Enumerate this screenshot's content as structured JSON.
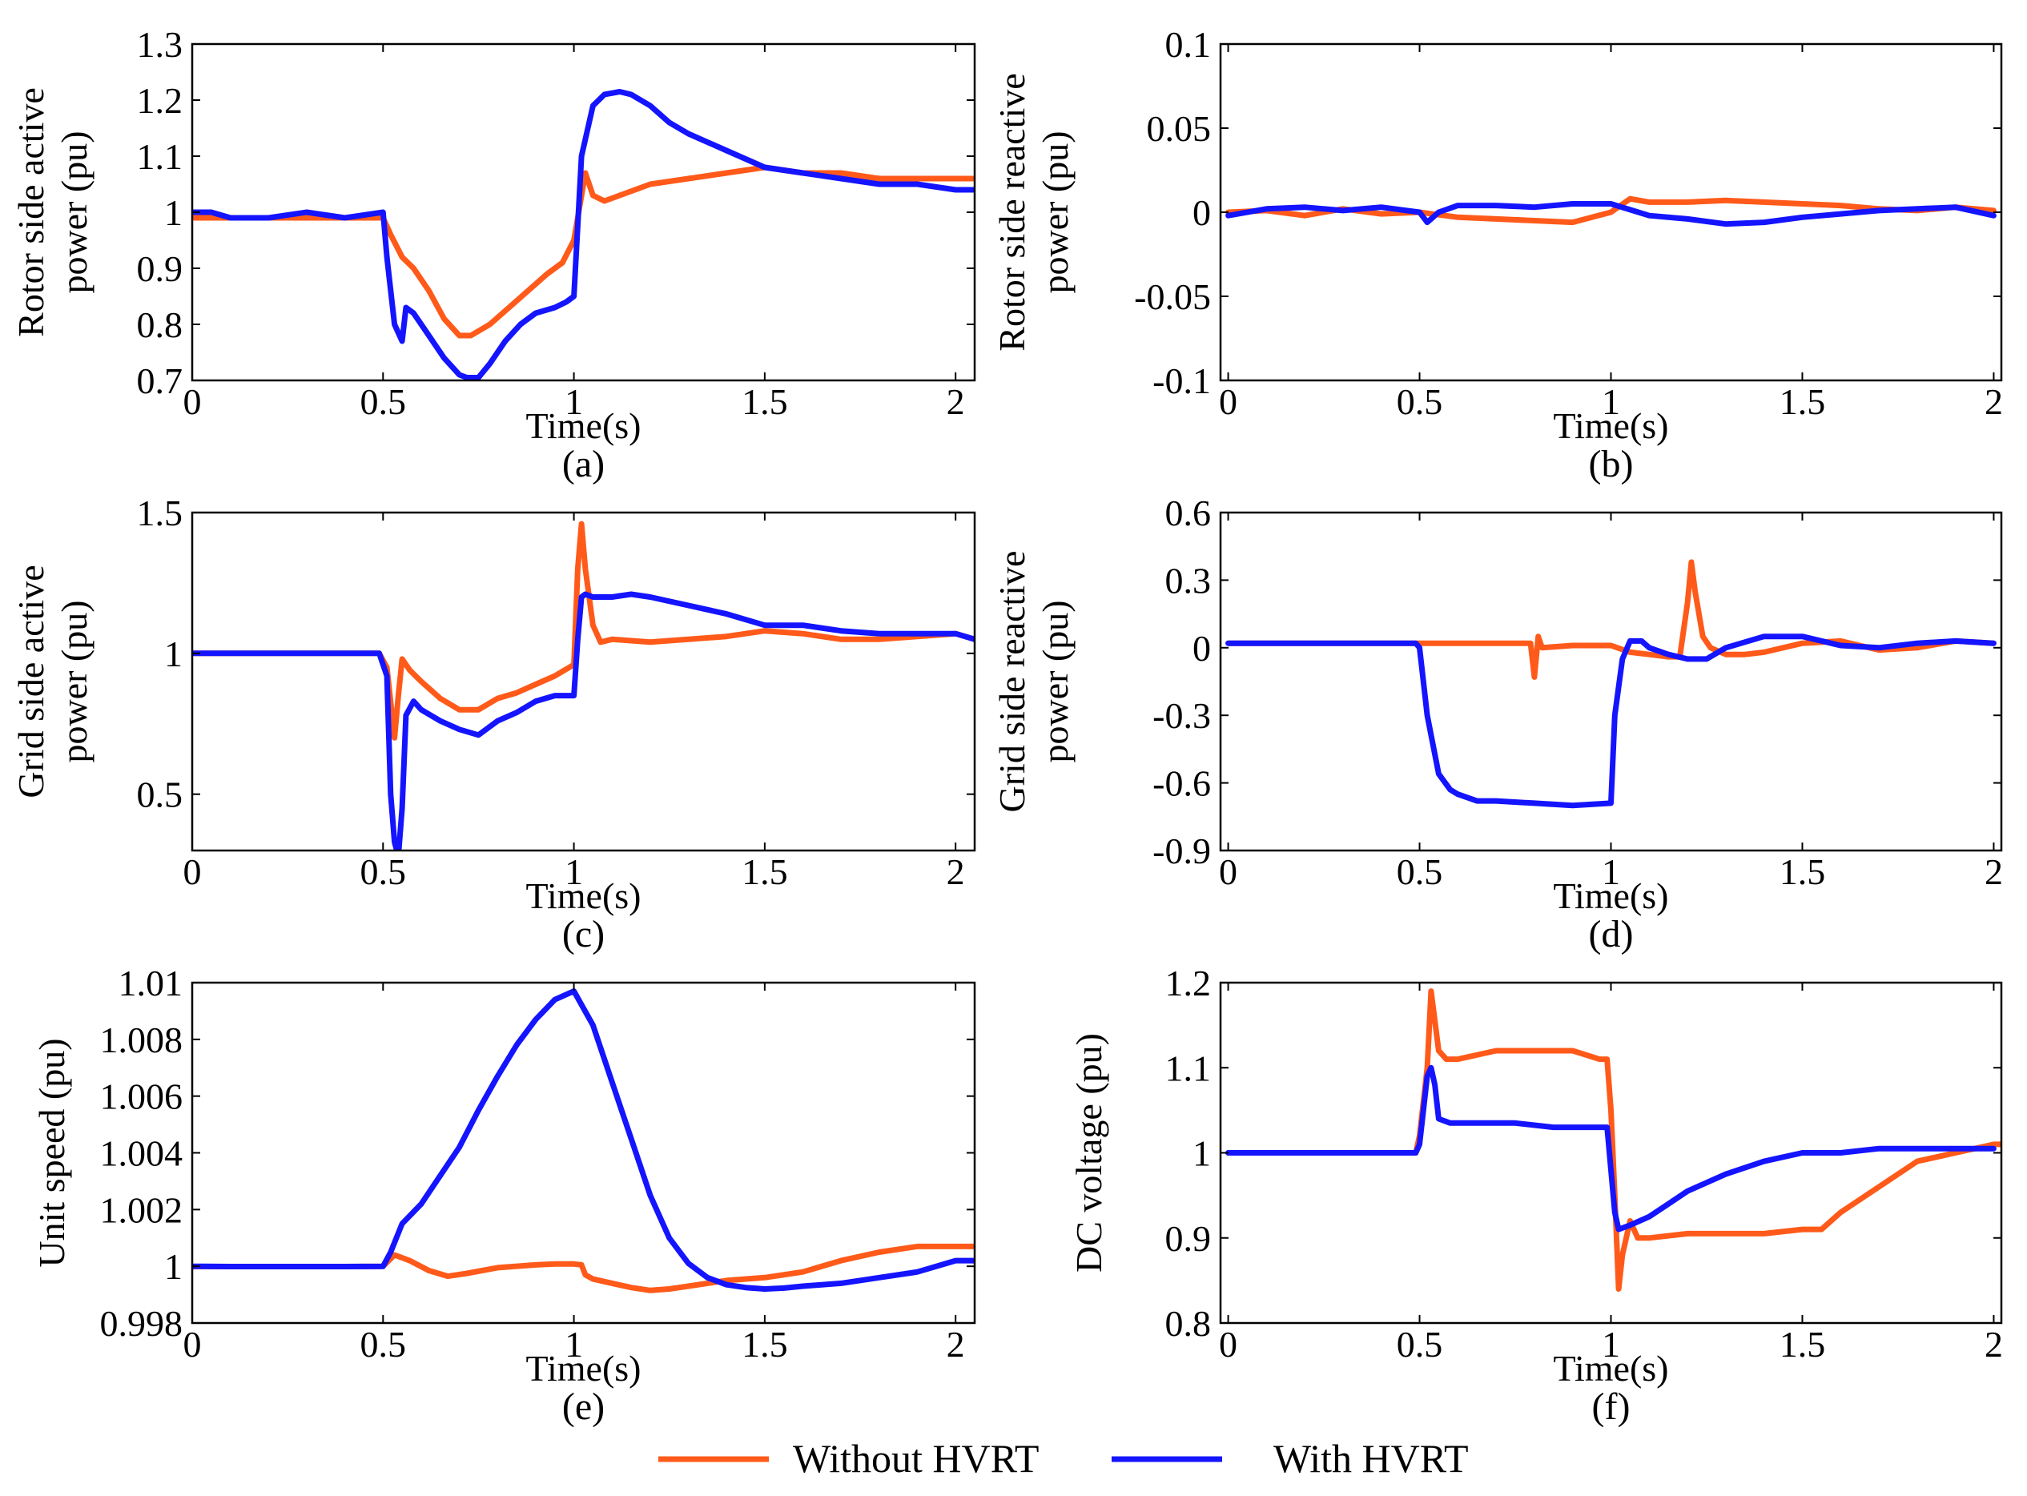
{
  "legend": {
    "series": [
      {
        "name": "Without HVRT",
        "color": "#ff5a1a"
      },
      {
        "name": "With HVRT",
        "color": "#1414ff"
      }
    ]
  },
  "chart_data": [
    {
      "id": "a",
      "caption": "(a)",
      "type": "line",
      "ylabel": [
        "Rotor side active",
        "power (pu)"
      ],
      "xlabel": "Time(s)",
      "xlim": [
        0,
        2.05
      ],
      "ylim": [
        0.7,
        1.3
      ],
      "xticks": [
        0,
        0.5,
        1,
        1.5,
        2
      ],
      "xtick_labels": [
        "0",
        "0.5",
        "1",
        "1.5",
        "2"
      ],
      "yticks": [
        0.7,
        0.8,
        0.9,
        1,
        1.1,
        1.2,
        1.3
      ],
      "ytick_labels": [
        "0.7",
        "0.8",
        "0.9",
        "1",
        "1.1",
        "1.2",
        "1.3"
      ],
      "series": [
        {
          "name": "Without HVRT",
          "color": "#ff5a1a",
          "x": [
            0,
            0.1,
            0.2,
            0.3,
            0.4,
            0.5,
            0.52,
            0.55,
            0.58,
            0.62,
            0.66,
            0.7,
            0.73,
            0.78,
            0.83,
            0.88,
            0.93,
            0.97,
            1.0,
            1.03,
            1.05,
            1.08,
            1.12,
            1.2,
            1.3,
            1.4,
            1.5,
            1.6,
            1.7,
            1.8,
            1.9,
            2.0,
            2.05
          ],
          "values": [
            0.99,
            0.99,
            0.99,
            0.99,
            0.99,
            0.99,
            0.96,
            0.92,
            0.9,
            0.86,
            0.81,
            0.78,
            0.78,
            0.8,
            0.83,
            0.86,
            0.89,
            0.91,
            0.95,
            1.07,
            1.03,
            1.02,
            1.03,
            1.05,
            1.06,
            1.07,
            1.08,
            1.07,
            1.07,
            1.06,
            1.06,
            1.06,
            1.06
          ]
        },
        {
          "name": "With HVRT",
          "color": "#1414ff",
          "x": [
            0,
            0.05,
            0.1,
            0.2,
            0.3,
            0.4,
            0.5,
            0.51,
            0.53,
            0.55,
            0.56,
            0.58,
            0.62,
            0.66,
            0.7,
            0.72,
            0.75,
            0.78,
            0.82,
            0.86,
            0.9,
            0.95,
            0.98,
            1.0,
            1.02,
            1.05,
            1.08,
            1.12,
            1.15,
            1.2,
            1.25,
            1.3,
            1.4,
            1.5,
            1.6,
            1.7,
            1.8,
            1.9,
            2.0,
            2.05
          ],
          "values": [
            1.0,
            1.0,
            0.99,
            0.99,
            1.0,
            0.99,
            1.0,
            0.92,
            0.8,
            0.77,
            0.83,
            0.82,
            0.78,
            0.74,
            0.71,
            0.705,
            0.705,
            0.73,
            0.77,
            0.8,
            0.82,
            0.83,
            0.84,
            0.85,
            1.1,
            1.19,
            1.21,
            1.215,
            1.21,
            1.19,
            1.16,
            1.14,
            1.11,
            1.08,
            1.07,
            1.06,
            1.05,
            1.05,
            1.04,
            1.04
          ]
        }
      ]
    },
    {
      "id": "b",
      "caption": "(b)",
      "type": "line",
      "ylabel": [
        "Rotor side reactive",
        "power (pu)"
      ],
      "xlabel": "Time(s)",
      "xlim": [
        -0.02,
        2.02
      ],
      "ylim": [
        -0.1,
        0.1
      ],
      "xticks": [
        0,
        0.5,
        1,
        1.5,
        2
      ],
      "xtick_labels": [
        "0",
        "0.5",
        "1",
        "1.5",
        "2"
      ],
      "yticks": [
        -0.1,
        -0.05,
        0,
        0.05,
        0.1
      ],
      "ytick_labels": [
        "-0.1",
        "-0.05",
        "0",
        "0.05",
        "0.1"
      ],
      "series": [
        {
          "name": "Without HVRT",
          "color": "#ff5a1a",
          "x": [
            0,
            0.1,
            0.2,
            0.3,
            0.4,
            0.5,
            0.6,
            0.7,
            0.8,
            0.9,
            1.0,
            1.05,
            1.1,
            1.2,
            1.3,
            1.4,
            1.5,
            1.6,
            1.7,
            1.8,
            1.9,
            2.0
          ],
          "values": [
            0.0,
            0.001,
            -0.002,
            0.002,
            -0.001,
            0.0,
            -0.003,
            -0.004,
            -0.005,
            -0.006,
            0.0,
            0.008,
            0.006,
            0.006,
            0.007,
            0.006,
            0.005,
            0.004,
            0.002,
            0.001,
            0.003,
            0.001
          ]
        },
        {
          "name": "With HVRT",
          "color": "#1414ff",
          "x": [
            0,
            0.1,
            0.2,
            0.3,
            0.4,
            0.5,
            0.52,
            0.55,
            0.6,
            0.7,
            0.8,
            0.9,
            1.0,
            1.1,
            1.2,
            1.3,
            1.4,
            1.5,
            1.6,
            1.7,
            1.8,
            1.9,
            2.0
          ],
          "values": [
            -0.002,
            0.002,
            0.003,
            0.001,
            0.003,
            0.0,
            -0.006,
            0.0,
            0.004,
            0.004,
            0.003,
            0.005,
            0.005,
            -0.002,
            -0.004,
            -0.007,
            -0.006,
            -0.003,
            -0.001,
            0.001,
            0.002,
            0.003,
            -0.002
          ]
        }
      ]
    },
    {
      "id": "c",
      "caption": "(c)",
      "type": "line",
      "ylabel": [
        "Grid side active",
        "power (pu)"
      ],
      "xlabel": "Time(s)",
      "xlim": [
        0,
        2.05
      ],
      "ylim": [
        0.3,
        1.5
      ],
      "xticks": [
        0,
        0.5,
        1,
        1.5,
        2
      ],
      "xtick_labels": [
        "0",
        "0.5",
        "1",
        "1.5",
        "2"
      ],
      "yticks": [
        0.5,
        1,
        1.5
      ],
      "ytick_labels": [
        "0.5",
        "1",
        "1.5"
      ],
      "series": [
        {
          "name": "Without HVRT",
          "color": "#ff5a1a",
          "x": [
            0,
            0.1,
            0.2,
            0.3,
            0.4,
            0.49,
            0.51,
            0.53,
            0.54,
            0.55,
            0.57,
            0.6,
            0.65,
            0.7,
            0.75,
            0.8,
            0.85,
            0.9,
            0.95,
            1.0,
            1.01,
            1.02,
            1.03,
            1.05,
            1.07,
            1.1,
            1.2,
            1.3,
            1.4,
            1.5,
            1.6,
            1.7,
            1.8,
            1.9,
            2.0,
            2.05
          ],
          "values": [
            1.0,
            1.0,
            1.0,
            1.0,
            1.0,
            1.0,
            0.95,
            0.7,
            0.85,
            0.98,
            0.94,
            0.9,
            0.84,
            0.8,
            0.8,
            0.84,
            0.86,
            0.89,
            0.92,
            0.96,
            1.3,
            1.46,
            1.3,
            1.1,
            1.04,
            1.05,
            1.04,
            1.05,
            1.06,
            1.08,
            1.07,
            1.05,
            1.05,
            1.06,
            1.07,
            1.05
          ]
        },
        {
          "name": "With HVRT",
          "color": "#1414ff",
          "x": [
            0,
            0.1,
            0.2,
            0.3,
            0.4,
            0.49,
            0.51,
            0.52,
            0.53,
            0.54,
            0.55,
            0.56,
            0.58,
            0.6,
            0.65,
            0.7,
            0.75,
            0.8,
            0.85,
            0.9,
            0.95,
            1.0,
            1.01,
            1.02,
            1.03,
            1.05,
            1.1,
            1.15,
            1.2,
            1.3,
            1.4,
            1.5,
            1.6,
            1.7,
            1.8,
            1.9,
            2.0,
            2.05
          ],
          "values": [
            1.0,
            1.0,
            1.0,
            1.0,
            1.0,
            1.0,
            0.92,
            0.5,
            0.33,
            0.28,
            0.45,
            0.78,
            0.83,
            0.8,
            0.76,
            0.73,
            0.71,
            0.76,
            0.79,
            0.83,
            0.85,
            0.85,
            1.05,
            1.2,
            1.21,
            1.2,
            1.2,
            1.21,
            1.2,
            1.17,
            1.14,
            1.1,
            1.1,
            1.08,
            1.07,
            1.07,
            1.07,
            1.05
          ]
        }
      ]
    },
    {
      "id": "d",
      "caption": "(d)",
      "type": "line",
      "ylabel": [
        "Grid side reactive",
        "power (pu)"
      ],
      "xlabel": "Time(s)",
      "xlim": [
        -0.02,
        2.02
      ],
      "ylim": [
        -0.9,
        0.6
      ],
      "xticks": [
        0,
        0.5,
        1,
        1.5,
        2
      ],
      "xtick_labels": [
        "0",
        "0.5",
        "1",
        "1.5",
        "2"
      ],
      "yticks": [
        -0.9,
        -0.6,
        -0.3,
        0,
        0.3,
        0.6
      ],
      "ytick_labels": [
        "-0.9",
        "-0.6",
        "-0.3",
        "0",
        "0.3",
        "0.6"
      ],
      "series": [
        {
          "name": "Without HVRT",
          "color": "#ff5a1a",
          "x": [
            0,
            0.2,
            0.4,
            0.6,
            0.79,
            0.8,
            0.81,
            0.82,
            0.9,
            1.0,
            1.05,
            1.1,
            1.15,
            1.18,
            1.2,
            1.21,
            1.22,
            1.24,
            1.26,
            1.3,
            1.35,
            1.4,
            1.5,
            1.6,
            1.7,
            1.8,
            1.9,
            2.0
          ],
          "values": [
            0.02,
            0.02,
            0.02,
            0.02,
            0.02,
            -0.13,
            0.05,
            0.0,
            0.01,
            0.01,
            -0.02,
            -0.03,
            -0.04,
            -0.04,
            0.2,
            0.38,
            0.25,
            0.05,
            0.0,
            -0.03,
            -0.03,
            -0.02,
            0.02,
            0.03,
            -0.01,
            0.0,
            0.03,
            0.02
          ]
        },
        {
          "name": "With HVRT",
          "color": "#1414ff",
          "x": [
            0,
            0.2,
            0.4,
            0.49,
            0.5,
            0.52,
            0.55,
            0.58,
            0.6,
            0.65,
            0.7,
            0.8,
            0.9,
            1.0,
            1.01,
            1.03,
            1.05,
            1.08,
            1.1,
            1.15,
            1.2,
            1.25,
            1.3,
            1.4,
            1.5,
            1.6,
            1.7,
            1.8,
            1.9,
            2.0
          ],
          "values": [
            0.02,
            0.02,
            0.02,
            0.02,
            0.0,
            -0.3,
            -0.56,
            -0.63,
            -0.65,
            -0.68,
            -0.68,
            -0.69,
            -0.7,
            -0.69,
            -0.3,
            -0.05,
            0.03,
            0.03,
            0.0,
            -0.03,
            -0.05,
            -0.05,
            0.0,
            0.05,
            0.05,
            0.01,
            0.0,
            0.02,
            0.03,
            0.02
          ]
        }
      ]
    },
    {
      "id": "e",
      "caption": "(e)",
      "type": "line",
      "ylabel": [
        "Unit speed (pu)"
      ],
      "xlabel": "Time(s)",
      "xlim": [
        0,
        2.05
      ],
      "ylim": [
        0.998,
        1.01
      ],
      "xticks": [
        0,
        0.5,
        1,
        1.5,
        2
      ],
      "xtick_labels": [
        "0",
        "0.5",
        "1",
        "1.5",
        "2"
      ],
      "yticks": [
        0.998,
        1,
        1.002,
        1.004,
        1.006,
        1.008,
        1.01
      ],
      "ytick_labels": [
        "0.998",
        "1",
        "1.002",
        "1.004",
        "1.006",
        "1.008",
        "1.01"
      ],
      "series": [
        {
          "name": "Without HVRT",
          "color": "#ff5a1a",
          "x": [
            0,
            0.1,
            0.2,
            0.3,
            0.4,
            0.5,
            0.53,
            0.57,
            0.62,
            0.67,
            0.72,
            0.8,
            0.9,
            0.95,
            1.0,
            1.02,
            1.03,
            1.05,
            1.1,
            1.15,
            1.2,
            1.25,
            1.3,
            1.4,
            1.5,
            1.6,
            1.7,
            1.8,
            1.9,
            2.0,
            2.05
          ],
          "values": [
            0.99999,
            0.99999,
            0.99999,
            0.99999,
            0.99999,
            1.0,
            1.0004,
            1.0002,
            0.99985,
            0.99965,
            0.99975,
            0.99995,
            1.00005,
            1.00008,
            1.00008,
            1.00005,
            0.9997,
            0.99955,
            0.9994,
            0.99925,
            0.99915,
            0.9992,
            0.9993,
            0.9995,
            0.9996,
            0.9998,
            1.0002,
            1.0005,
            1.0007,
            1.0007,
            1.0007
          ]
        },
        {
          "name": "With HVRT",
          "color": "#1414ff",
          "x": [
            0,
            0.1,
            0.2,
            0.3,
            0.4,
            0.5,
            0.52,
            0.55,
            0.6,
            0.65,
            0.7,
            0.75,
            0.8,
            0.85,
            0.9,
            0.95,
            1.0,
            1.05,
            1.1,
            1.15,
            1.2,
            1.25,
            1.3,
            1.35,
            1.4,
            1.45,
            1.5,
            1.55,
            1.6,
            1.7,
            1.8,
            1.9,
            2.0,
            2.05
          ],
          "values": [
            1.0,
            0.99999,
            0.99999,
            0.99999,
            0.99999,
            1.0,
            1.0005,
            1.0015,
            1.0022,
            1.0032,
            1.0042,
            1.0055,
            1.0067,
            1.0078,
            1.0087,
            1.0094,
            1.0097,
            1.0085,
            1.0065,
            1.0045,
            1.0025,
            1.001,
            1.0001,
            0.9996,
            0.99935,
            0.99925,
            0.9992,
            0.99923,
            0.9993,
            0.9994,
            0.9996,
            0.9998,
            1.0002,
            1.0002
          ]
        }
      ]
    },
    {
      "id": "f",
      "caption": "(f)",
      "type": "line",
      "ylabel": [
        "DC voltage (pu)"
      ],
      "xlabel": "Time(s)",
      "xlim": [
        -0.02,
        2.02
      ],
      "ylim": [
        0.8,
        1.2
      ],
      "xticks": [
        0,
        0.5,
        1,
        1.5,
        2
      ],
      "xtick_labels": [
        "0",
        "0.5",
        "1",
        "1.5",
        "2"
      ],
      "yticks": [
        0.8,
        0.9,
        1,
        1.1,
        1.2
      ],
      "ytick_labels": [
        "0.8",
        "0.9",
        "1",
        "1.1",
        "1.2"
      ],
      "series": [
        {
          "name": "Without HVRT",
          "color": "#ff5a1a",
          "x": [
            0,
            0.2,
            0.4,
            0.49,
            0.5,
            0.52,
            0.53,
            0.55,
            0.57,
            0.6,
            0.7,
            0.8,
            0.9,
            0.97,
            0.99,
            1.0,
            1.01,
            1.02,
            1.03,
            1.05,
            1.07,
            1.1,
            1.2,
            1.3,
            1.4,
            1.5,
            1.55,
            1.6,
            1.7,
            1.8,
            1.9,
            2.0,
            2.02
          ],
          "values": [
            1.0,
            1.0,
            1.0,
            1.0,
            1.02,
            1.1,
            1.19,
            1.12,
            1.11,
            1.11,
            1.12,
            1.12,
            1.12,
            1.11,
            1.11,
            1.05,
            0.95,
            0.84,
            0.88,
            0.92,
            0.9,
            0.9,
            0.905,
            0.905,
            0.905,
            0.91,
            0.91,
            0.93,
            0.96,
            0.99,
            1.0,
            1.01,
            1.01
          ]
        },
        {
          "name": "With HVRT",
          "color": "#1414ff",
          "x": [
            0,
            0.2,
            0.4,
            0.49,
            0.5,
            0.51,
            0.52,
            0.53,
            0.54,
            0.55,
            0.58,
            0.65,
            0.75,
            0.85,
            0.95,
            0.99,
            1.0,
            1.01,
            1.02,
            1.05,
            1.1,
            1.15,
            1.2,
            1.3,
            1.4,
            1.5,
            1.6,
            1.7,
            1.8,
            1.9,
            2.0
          ],
          "values": [
            1.0,
            1.0,
            1.0,
            1.0,
            1.01,
            1.05,
            1.09,
            1.1,
            1.08,
            1.04,
            1.035,
            1.035,
            1.035,
            1.03,
            1.03,
            1.03,
            0.98,
            0.93,
            0.91,
            0.915,
            0.925,
            0.94,
            0.955,
            0.975,
            0.99,
            1.0,
            1.0,
            1.005,
            1.005,
            1.005,
            1.005
          ]
        }
      ]
    }
  ]
}
